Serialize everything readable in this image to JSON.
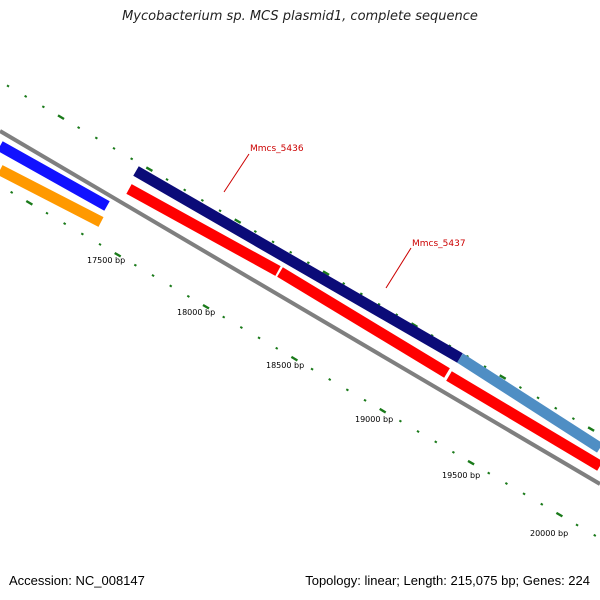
{
  "title": "Mycobacterium sp. MCS plasmid1, complete sequence",
  "footer": {
    "accession": "Accession: NC_008147",
    "summary": "Topology: linear; Length: 215,075 bp; Genes: 224"
  },
  "ruler": {
    "labels": [
      "17500 bp",
      "18000 bp",
      "18500 bp",
      "19000 bp",
      "19500 bp",
      "20000 bp"
    ],
    "tick_color": "#1a7a1a"
  },
  "genes": [
    {
      "label": "Mmcs_5436"
    },
    {
      "label": "Mmcs_5437"
    }
  ],
  "colors": {
    "navy": "#0b0b78",
    "red": "#ff0000",
    "blue": "#1111ff",
    "orange": "#ff9900",
    "steel_blue": "#4f8ec4",
    "backbone": "#7f7f7f",
    "label_red": "#cc0000"
  }
}
